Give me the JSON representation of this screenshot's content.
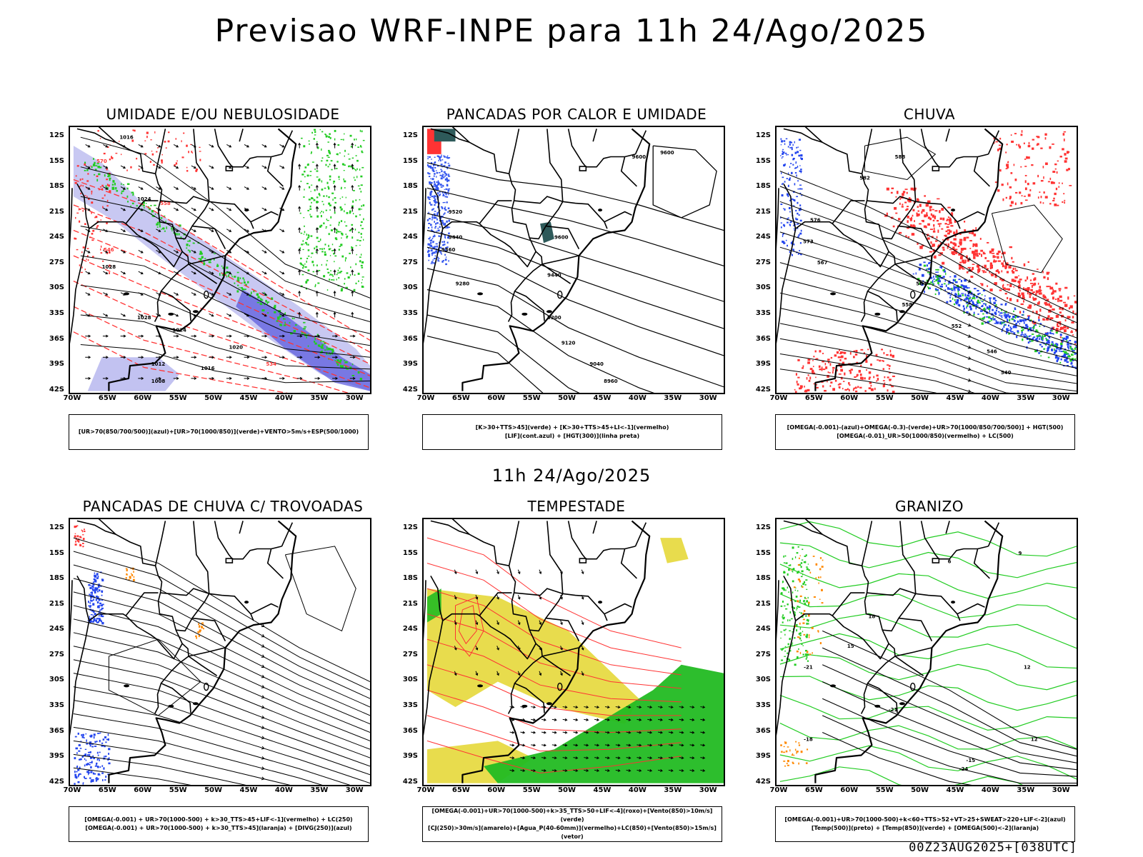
{
  "main_title": "Previsao WRF-INPE  para 11h 24/Ago/2025",
  "mid_title": "11h 24/Ago/2025",
  "footer": "00Z23AUG2025+[038UTC]",
  "lat_labels": [
    "12S",
    "15S",
    "18S",
    "21S",
    "24S",
    "27S",
    "30S",
    "33S",
    "36S",
    "39S",
    "42S"
  ],
  "lon_labels": [
    "70W",
    "65W",
    "60W",
    "55W",
    "50W",
    "45W",
    "40W",
    "35W",
    "30W"
  ],
  "colors": {
    "humidity_blue": "#9a9ae8",
    "humidity_blue_dark": "#5555dd",
    "green_contour": "#22cc22",
    "red_contour": "#ff3333",
    "yellow_fill": "#e6d83a",
    "green_fill": "#22bb22",
    "dark_teal": "#2e5a5a",
    "orange": "#ff8800"
  },
  "panels": [
    {
      "title": "UMIDADE E/OU NEBULOSIDADE",
      "legend": [
        "[UR>70(850/700/500)](azul)+[UR>70(1000/850)](verde)+VENTO>5m/s+ESP(500/1000)"
      ],
      "labels": [
        "1016",
        "1020",
        "1024",
        "1028",
        "1012",
        "1008",
        "570",
        "546",
        "558",
        "534"
      ]
    },
    {
      "title": "PANCADAS POR CALOR E UMIDADE",
      "legend": [
        "[K>30+TTS>45](verde)  +  [K>30+TTS>45+LI<-1](vermelho)",
        "[LIF](cont.azul)  +  [HGT(300)](linha preta)"
      ],
      "labels": [
        "9600",
        "9520",
        "9440",
        "9360",
        "9280",
        "9200",
        "9120",
        "9040",
        "8960"
      ]
    },
    {
      "title": "CHUVA",
      "legend": [
        "[OMEGA(-0.001)-(azul)+OMEGA(-0.3)-(verde)+UR>70(1000/850/700/500)]  +  HGT(500)",
        "[OMEGA(-0.01)_UR>50(1000/850)(vermelho)  +  LC(500)"
      ],
      "labels": [
        "588",
        "582",
        "576",
        "570",
        "564",
        "558",
        "552",
        "546",
        "540"
      ]
    },
    {
      "title": "PANCADAS DE CHUVA C/ TROVOADAS",
      "legend": [
        "[OMEGA(-0.001)  +  UR>70(1000-500)  +  k>30_TTS>45+LIF<-1](vermelho)  +  LC(250)",
        "[OMEGA(-0.001)  +  UR>70(1000-500)  +  k>30_TTS>45](laranja)  +  [DIVG(250)](azul)"
      ],
      "labels": []
    },
    {
      "title": "TEMPESTADE",
      "legend": [
        "[OMEGA(-0.001)+UR>70(1000-500)+k>35_TTS>50+LIF<-4](roxo)+[Vento(850)>10m/s](verde)",
        "[CJ(250)>30m/s](amarelo)+[Agua_P(40-60mm)](vermelho)+LC(850)+[Vento(850)>15m/s](vetor)"
      ],
      "labels": []
    },
    {
      "title": "GRANIZO",
      "legend": [
        "[OMEGA(-0.001)+UR>70(1000-500)+k<60+TTS>52+VT>25+SWEAT>220+LIF<-2](azul)",
        "[Temp(500)](preto)  +  [Temp(850)](verde)  +  [OMEGA(500)<-2](laranja)"
      ],
      "labels": [
        "-21",
        "-18",
        "-15",
        "-24",
        "12",
        "15",
        "18",
        "21",
        "6",
        "9"
      ]
    }
  ]
}
